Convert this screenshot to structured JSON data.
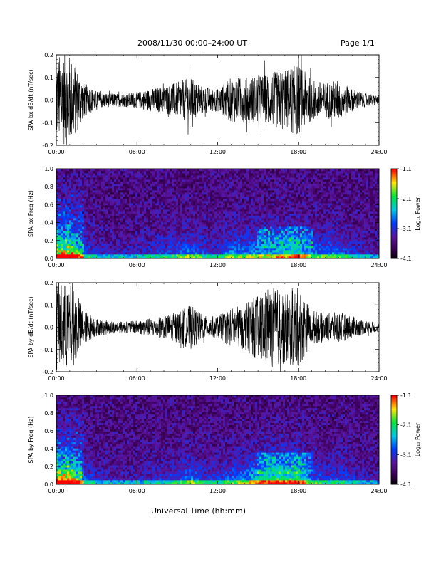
{
  "header": {
    "title": "2008/11/30  00:00–24:00 UT",
    "page": "Page 1/1"
  },
  "xlabel": "Universal Time (hh:mm)",
  "chart_data": [
    {
      "type": "line",
      "ylabel": "SPA bx dB/dt (nT/sec)",
      "ylim": [
        -0.2,
        0.2
      ],
      "xlim": [
        0,
        24
      ],
      "xticks": [
        "00:00",
        "06:00",
        "12:00",
        "18:00",
        "24:00"
      ],
      "yticks": [
        "-0.2",
        "-0.1",
        "0.0",
        "0.1",
        "0.2"
      ],
      "amplitude_profile": {
        "hours": [
          0,
          0.5,
          1,
          1.5,
          2,
          3,
          4,
          5,
          6,
          7,
          8,
          9,
          10,
          11,
          12,
          13,
          14,
          15,
          16,
          17,
          18,
          19,
          20,
          21,
          22,
          23,
          24
        ],
        "amp": [
          0.2,
          0.2,
          0.2,
          0.15,
          0.08,
          0.04,
          0.03,
          0.03,
          0.035,
          0.05,
          0.06,
          0.08,
          0.1,
          0.06,
          0.05,
          0.1,
          0.1,
          0.11,
          0.12,
          0.14,
          0.16,
          0.09,
          0.08,
          0.09,
          0.05,
          0.03,
          0.02
        ]
      }
    },
    {
      "type": "heatmap",
      "ylabel": "SPA bx Freq (Hz)",
      "ylim": [
        0.0,
        1.0
      ],
      "xlim": [
        0,
        24
      ],
      "xticks": [
        "00:00",
        "06:00",
        "12:00",
        "18:00",
        "24:00"
      ],
      "yticks": [
        "0.0",
        "0.2",
        "0.4",
        "0.6",
        "0.8",
        "1.0"
      ],
      "colorbar": {
        "label": "Log₁₀ Power",
        "ticks": [
          "-1.1",
          "-2.1",
          "-3.1",
          "-4.1"
        ],
        "range": [
          -4.1,
          -1.1
        ]
      }
    },
    {
      "type": "line",
      "ylabel": "SPA by dB/dt (nT/sec)",
      "ylim": [
        -0.2,
        0.2
      ],
      "xlim": [
        0,
        24
      ],
      "xticks": [
        "00:00",
        "06:00",
        "12:00",
        "18:00",
        "24:00"
      ],
      "yticks": [
        "-0.2",
        "-0.1",
        "0.0",
        "0.1",
        "0.2"
      ],
      "amplitude_profile": {
        "hours": [
          0,
          0.5,
          1,
          1.5,
          2,
          3,
          4,
          5,
          6,
          7,
          8,
          9,
          10,
          11,
          12,
          13,
          14,
          15,
          16,
          17,
          18,
          19,
          20,
          21,
          22,
          23,
          24
        ],
        "amp": [
          0.2,
          0.2,
          0.2,
          0.15,
          0.08,
          0.04,
          0.03,
          0.025,
          0.03,
          0.04,
          0.05,
          0.07,
          0.1,
          0.05,
          0.05,
          0.09,
          0.1,
          0.15,
          0.18,
          0.17,
          0.18,
          0.08,
          0.06,
          0.07,
          0.05,
          0.03,
          0.02
        ]
      }
    },
    {
      "type": "heatmap",
      "ylabel": "SPA by Freq (Hz)",
      "ylim": [
        0.0,
        1.0
      ],
      "xlim": [
        0,
        24
      ],
      "xticks": [
        "00:00",
        "06:00",
        "12:00",
        "18:00",
        "24:00"
      ],
      "yticks": [
        "0.0",
        "0.2",
        "0.4",
        "0.6",
        "0.8",
        "1.0"
      ],
      "colorbar": {
        "label": "Log₁₀ Power",
        "ticks": [
          "-1.1",
          "-2.1",
          "-3.1",
          "-4.1"
        ],
        "range": [
          -4.1,
          -1.1
        ]
      }
    }
  ]
}
